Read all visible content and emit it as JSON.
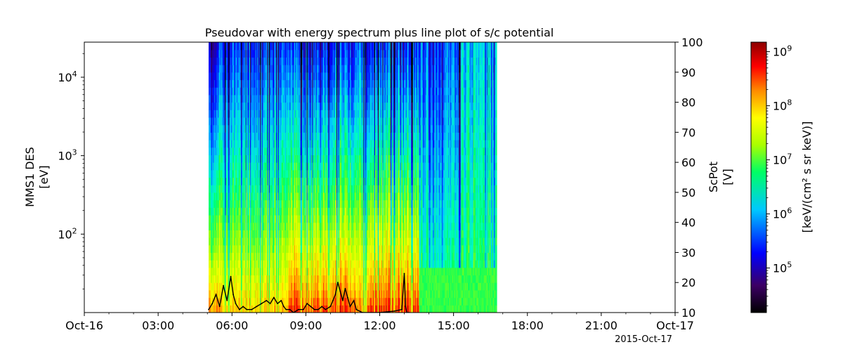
{
  "chart_data": {
    "type": "heatmap",
    "title": "Pseudovar with energy spectrum plus line plot of s/c potential",
    "x_axis": {
      "tick_labels": [
        "Oct-16",
        "03:00",
        "06:00",
        "09:00",
        "12:00",
        "15:00",
        "18:00",
        "21:00",
        "Oct-17"
      ],
      "tick_hours": [
        0,
        3,
        6,
        9,
        12,
        15,
        18,
        21,
        24
      ],
      "xlim_hours": [
        0,
        24
      ],
      "date_label": "2015-Oct-17"
    },
    "y_axis_left": {
      "label_line1": "MMS1 DES",
      "label_line2": "[eV]",
      "scale": "log",
      "ylim": [
        10,
        28000
      ],
      "ticks": [
        {
          "value": 100,
          "base": "10",
          "exp": "2"
        },
        {
          "value": 1000,
          "base": "10",
          "exp": "3"
        },
        {
          "value": 10000,
          "base": "10",
          "exp": "4"
        }
      ]
    },
    "y_axis_right": {
      "label_line1": "ScPot",
      "label_line2": "[V]",
      "scale": "linear",
      "ylim": [
        10,
        100
      ],
      "ticks": [
        "10",
        "20",
        "30",
        "40",
        "50",
        "60",
        "70",
        "80",
        "90",
        "100"
      ]
    },
    "colorbar": {
      "label": "[keV/(cm² s sr keV)]",
      "scale": "log",
      "colormap": "jet",
      "range": [
        15000,
        1500000000
      ],
      "ticks": [
        {
          "value": 100000,
          "base": "10",
          "exp": "5"
        },
        {
          "value": 1000000,
          "base": "10",
          "exp": "6"
        },
        {
          "value": 10000000,
          "base": "10",
          "exp": "7"
        },
        {
          "value": 100000000,
          "base": "10",
          "exp": "8"
        },
        {
          "value": 1000000000,
          "base": "10",
          "exp": "9"
        }
      ]
    },
    "spectrogram": {
      "time_range_hours": [
        5.05,
        16.75
      ],
      "energy_range_eV": [
        10,
        28000
      ],
      "description_regions": [
        {
          "hours": [
            5.05,
            5.5
          ],
          "low_energy_level": "orange",
          "mid": "green",
          "high": "blue/purple"
        },
        {
          "hours": [
            8.3,
            11.0
          ],
          "low_energy_level": "red",
          "mid": "yellow-green",
          "high": "blue"
        },
        {
          "hours": [
            11.5,
            13.6
          ],
          "low_energy_level": "red",
          "mid": "yellow-green",
          "high": "blue"
        },
        {
          "hours": [
            13.6,
            16.75
          ],
          "low_energy_level": "green",
          "mid": "green-cyan",
          "high": "blue-cyan"
        }
      ]
    },
    "line_series": {
      "name": "ScPot",
      "color": "#000000",
      "points": [
        [
          5.05,
          11
        ],
        [
          5.2,
          13
        ],
        [
          5.35,
          16
        ],
        [
          5.5,
          12
        ],
        [
          5.65,
          19
        ],
        [
          5.8,
          14
        ],
        [
          5.95,
          22
        ],
        [
          6.05,
          16
        ],
        [
          6.15,
          13
        ],
        [
          6.3,
          11
        ],
        [
          6.45,
          12
        ],
        [
          6.6,
          11
        ],
        [
          6.8,
          11
        ],
        [
          7.0,
          12
        ],
        [
          7.2,
          13
        ],
        [
          7.4,
          14
        ],
        [
          7.55,
          13
        ],
        [
          7.7,
          15
        ],
        [
          7.85,
          13
        ],
        [
          8.0,
          14
        ],
        [
          8.1,
          12
        ],
        [
          8.2,
          11
        ],
        [
          8.35,
          11
        ],
        [
          8.5,
          10
        ],
        [
          8.7,
          11
        ],
        [
          8.9,
          11
        ],
        [
          9.05,
          13
        ],
        [
          9.2,
          12
        ],
        [
          9.35,
          11
        ],
        [
          9.5,
          11
        ],
        [
          9.65,
          12
        ],
        [
          9.8,
          11
        ],
        [
          10.0,
          12
        ],
        [
          10.1,
          14
        ],
        [
          10.2,
          16
        ],
        [
          10.3,
          20
        ],
        [
          10.4,
          17
        ],
        [
          10.5,
          14
        ],
        [
          10.6,
          18
        ],
        [
          10.7,
          15
        ],
        [
          10.8,
          12
        ],
        [
          10.95,
          14
        ],
        [
          11.05,
          11
        ],
        [
          11.3,
          10
        ],
        [
          12.0,
          10
        ],
        [
          12.6,
          10.5
        ],
        [
          12.9,
          11
        ],
        [
          13.0,
          23
        ],
        [
          13.05,
          12
        ],
        [
          13.1,
          10
        ],
        [
          13.2,
          10
        ]
      ]
    }
  }
}
